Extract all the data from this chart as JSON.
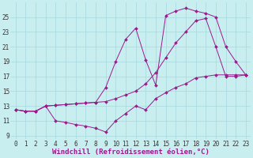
{
  "line1_x": [
    0,
    1,
    2,
    3,
    4,
    5,
    6,
    7,
    8,
    9,
    10,
    11,
    12,
    13,
    14,
    15,
    16,
    17,
    18,
    19,
    20,
    21,
    22,
    23
  ],
  "line1_y": [
    12.5,
    12.3,
    12.3,
    13.0,
    13.1,
    13.2,
    13.3,
    13.4,
    13.5,
    15.5,
    19.0,
    22.0,
    23.5,
    19.2,
    15.8,
    25.2,
    25.8,
    26.2,
    25.8,
    25.5,
    25.0,
    21.0,
    19.0,
    17.2
  ],
  "line2_x": [
    0,
    1,
    2,
    3,
    4,
    5,
    6,
    7,
    8,
    9,
    10,
    11,
    12,
    13,
    14,
    15,
    16,
    17,
    18,
    19,
    20,
    21,
    22,
    23
  ],
  "line2_y": [
    12.5,
    12.3,
    12.3,
    13.0,
    13.1,
    13.2,
    13.3,
    13.4,
    13.5,
    13.6,
    14.0,
    14.5,
    15.0,
    16.0,
    17.5,
    19.5,
    21.5,
    23.0,
    24.5,
    24.8,
    21.0,
    17.0,
    17.0,
    17.2
  ],
  "line3_x": [
    0,
    1,
    2,
    3,
    4,
    5,
    6,
    7,
    8,
    9,
    10,
    11,
    12,
    13,
    14,
    15,
    16,
    17,
    18,
    19,
    20,
    21,
    22,
    23
  ],
  "line3_y": [
    12.5,
    12.3,
    12.3,
    13.0,
    11.0,
    10.8,
    10.5,
    10.3,
    10.0,
    9.5,
    11.0,
    12.0,
    13.0,
    12.5,
    14.0,
    14.8,
    15.5,
    16.0,
    16.8,
    17.0,
    17.2,
    17.2,
    17.2,
    17.2
  ],
  "line_color": "#9b1a8c",
  "bg_color": "#c8eef0",
  "grid_color": "#a8d8dc",
  "xlabel": "Windchill (Refroidissement éolien,°C)",
  "yticks": [
    9,
    11,
    13,
    15,
    17,
    19,
    21,
    23,
    25
  ],
  "xticks": [
    0,
    1,
    2,
    3,
    4,
    5,
    6,
    7,
    8,
    9,
    10,
    11,
    12,
    13,
    14,
    15,
    16,
    17,
    18,
    19,
    20,
    21,
    22,
    23
  ],
  "xlim": [
    -0.5,
    23.5
  ],
  "ylim": [
    8.5,
    27.0
  ],
  "tick_fontsize": 5.5,
  "label_fontsize": 6.5,
  "figsize": [
    3.2,
    2.0
  ],
  "dpi": 100
}
